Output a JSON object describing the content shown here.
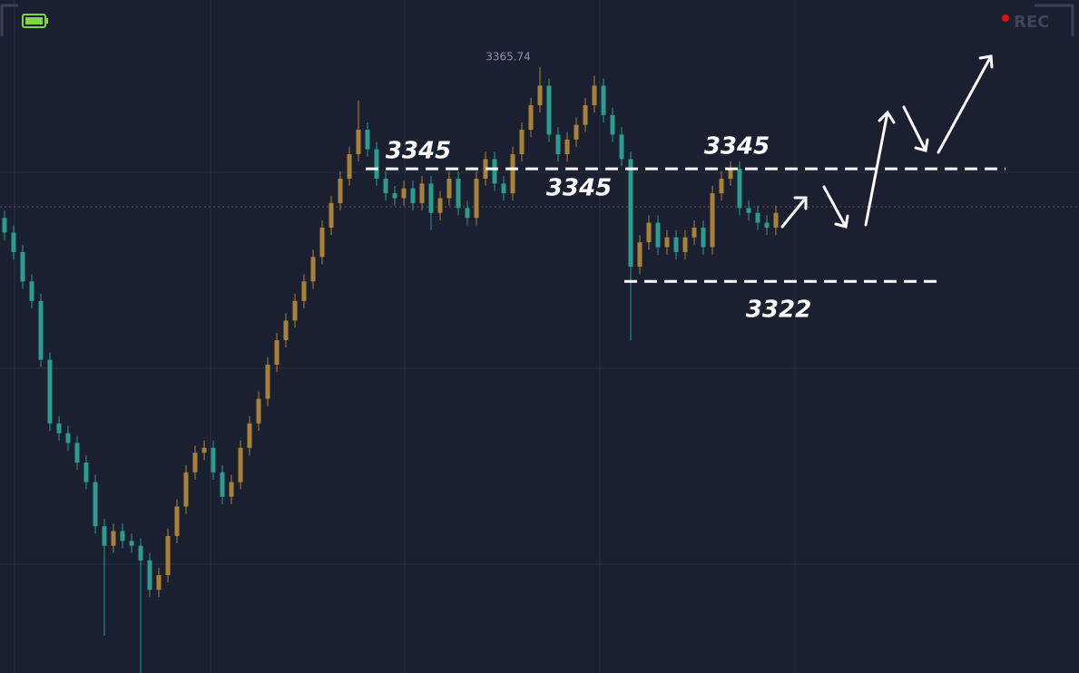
{
  "chart_data": {
    "type": "candlestick",
    "high_label": "3365.74",
    "rec": "REC",
    "levels": [
      3345,
      3322
    ],
    "level_labels": [
      "3345",
      "3345",
      "3345",
      "3322"
    ],
    "up_color": "#a98238",
    "down_color": "#2a9d8f",
    "ylim": [
      3242,
      3379.5
    ],
    "open": [
      3335,
      3332,
      3328,
      3322,
      3318,
      3306,
      3293,
      3291,
      3289,
      3285,
      3281,
      3272,
      3268,
      3271,
      3269,
      3268,
      3265,
      3259,
      3262,
      3270,
      3276,
      3283,
      3287,
      3288,
      3283,
      3278,
      3281,
      3288,
      3293,
      3298,
      3305,
      3310,
      3314,
      3318,
      3322,
      3327,
      3333,
      3338,
      3343,
      3348,
      3353,
      3349,
      3343,
      3340,
      3339,
      3341,
      3338,
      3342,
      3336,
      3339,
      3343,
      3337,
      3335,
      3343,
      3347,
      3342,
      3340,
      3348,
      3353,
      3358,
      3362,
      3352,
      3348,
      3351,
      3354,
      3358,
      3362,
      3356,
      3352,
      3347,
      3325,
      3330,
      3334,
      3329,
      3331,
      3328,
      3331,
      3333,
      3329,
      3340,
      3343,
      3345,
      3337,
      3336,
      3334,
      3333
    ],
    "high": [
      3336.5,
      3333.5,
      3329.5,
      3323.5,
      3319.5,
      3307.5,
      3294.5,
      3292.5,
      3290.5,
      3286.5,
      3282.5,
      3273.5,
      3272.5,
      3272.5,
      3270.5,
      3269.5,
      3266.5,
      3263.5,
      3271.5,
      3277.5,
      3284.5,
      3288.5,
      3289.5,
      3289.5,
      3284.5,
      3282.5,
      3289.5,
      3294.5,
      3299.5,
      3306.5,
      3311.5,
      3315.5,
      3319.5,
      3323.5,
      3328.5,
      3334.5,
      3339.5,
      3344.5,
      3349.5,
      3359,
      3354.5,
      3350.5,
      3344.5,
      3341.5,
      3342.5,
      3342.5,
      3343.5,
      3343.5,
      3340.5,
      3344.5,
      3344.5,
      3338.5,
      3344.5,
      3348.5,
      3348.5,
      3343.5,
      3349.5,
      3354.5,
      3359.5,
      3365.74,
      3363.5,
      3353.5,
      3352.5,
      3355.5,
      3359.5,
      3364,
      3363.5,
      3357.5,
      3353.5,
      3348.5,
      3331.5,
      3335.5,
      3335.5,
      3332.5,
      3332.5,
      3332.5,
      3334.5,
      3334.5,
      3341.5,
      3344.5,
      3346.5,
      3346.5,
      3338.5,
      3337.5,
      3335.5,
      3337.5
    ],
    "low": [
      3330.5,
      3326.5,
      3320.5,
      3316.5,
      3304.5,
      3291.5,
      3289.5,
      3287.5,
      3283.5,
      3279.5,
      3270.5,
      3249.6,
      3266.5,
      3267.5,
      3266.5,
      3242,
      3257.5,
      3257.5,
      3260.5,
      3268.5,
      3274.5,
      3281.5,
      3285.5,
      3281.5,
      3276.5,
      3276.5,
      3279.5,
      3286.5,
      3291.5,
      3296.5,
      3303.5,
      3308.5,
      3312.5,
      3316.5,
      3320.5,
      3325.5,
      3331.5,
      3336.5,
      3341.5,
      3346.5,
      3347.5,
      3341.5,
      3338.5,
      3337.5,
      3337.5,
      3336.5,
      3336.5,
      3332.5,
      3334.5,
      3337.5,
      3335.5,
      3333.5,
      3333.5,
      3341.5,
      3340.5,
      3338.5,
      3338.5,
      3346.5,
      3351.5,
      3356.5,
      3350.5,
      3346.5,
      3346.5,
      3349.5,
      3352.5,
      3356.5,
      3354.5,
      3350.5,
      3345.5,
      3310,
      3323.5,
      3328.5,
      3327.5,
      3327.5,
      3326.5,
      3326.5,
      3329.5,
      3327.5,
      3327.5,
      3338.5,
      3341.5,
      3335.5,
      3334.5,
      3332.5,
      3331.5,
      3331.5
    ],
    "close": [
      3332,
      3328,
      3322,
      3318,
      3306,
      3293,
      3291,
      3289,
      3285,
      3281,
      3272,
      3268,
      3271,
      3269,
      3268,
      3265,
      3259,
      3262,
      3270,
      3276,
      3283,
      3287,
      3288,
      3283,
      3278,
      3281,
      3288,
      3293,
      3298,
      3305,
      3310,
      3314,
      3318,
      3322,
      3327,
      3333,
      3338,
      3343,
      3348,
      3353,
      3349,
      3343,
      3340,
      3339,
      3341,
      3338,
      3342,
      3336,
      3339,
      3343,
      3337,
      3335,
      3343,
      3347,
      3342,
      3340,
      3348,
      3353,
      3358,
      3362,
      3352,
      3348,
      3351,
      3354,
      3358,
      3362,
      3356,
      3352,
      3347,
      3325,
      3330,
      3334,
      3329,
      3331,
      3328,
      3331,
      3333,
      3329,
      3340,
      3343,
      3345,
      3337,
      3336,
      3334,
      3333,
      3336
    ]
  }
}
